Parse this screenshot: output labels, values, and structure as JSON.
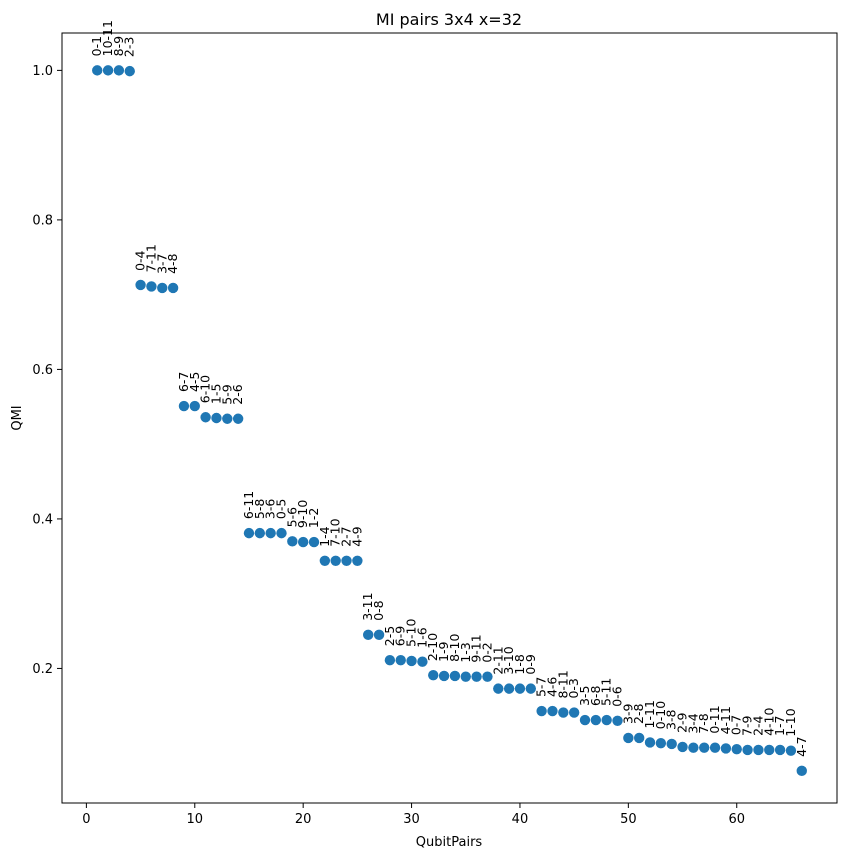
{
  "chart_data": {
    "type": "scatter",
    "title": "MI pairs 3x4 x=32",
    "xlabel": "QubitPairs",
    "ylabel": "QMI",
    "xlim": [
      -2.25,
      69.25
    ],
    "ylim": [
      0.02,
      1.05
    ],
    "xticks": [
      0,
      10,
      20,
      30,
      40,
      50,
      60
    ],
    "yticks": [
      0.2,
      0.4,
      0.6,
      0.8,
      1.0
    ],
    "ytick_labels": [
      "0.2",
      "0.4",
      "0.6",
      "0.8",
      "1.0"
    ],
    "marker_color": "#1f77b4",
    "grid": false,
    "points": [
      {
        "x": 1,
        "y": 1.0,
        "label": "0-1"
      },
      {
        "x": 2,
        "y": 1.0,
        "label": "10-11"
      },
      {
        "x": 3,
        "y": 1.0,
        "label": "8-9"
      },
      {
        "x": 4,
        "y": 0.999,
        "label": "2-3"
      },
      {
        "x": 5,
        "y": 0.713,
        "label": "0-4"
      },
      {
        "x": 6,
        "y": 0.711,
        "label": "7-11"
      },
      {
        "x": 7,
        "y": 0.709,
        "label": "3-7"
      },
      {
        "x": 8,
        "y": 0.709,
        "label": "4-8"
      },
      {
        "x": 9,
        "y": 0.551,
        "label": "6-7"
      },
      {
        "x": 10,
        "y": 0.551,
        "label": "4-5"
      },
      {
        "x": 11,
        "y": 0.536,
        "label": "6-10"
      },
      {
        "x": 12,
        "y": 0.535,
        "label": "1-5"
      },
      {
        "x": 13,
        "y": 0.534,
        "label": "5-9"
      },
      {
        "x": 14,
        "y": 0.534,
        "label": "2-6"
      },
      {
        "x": 15,
        "y": 0.381,
        "label": "6-11"
      },
      {
        "x": 16,
        "y": 0.381,
        "label": "5-8"
      },
      {
        "x": 17,
        "y": 0.381,
        "label": "3-6"
      },
      {
        "x": 18,
        "y": 0.381,
        "label": "0-5"
      },
      {
        "x": 19,
        "y": 0.37,
        "label": "5-6"
      },
      {
        "x": 20,
        "y": 0.369,
        "label": "9-10"
      },
      {
        "x": 21,
        "y": 0.369,
        "label": "1-2"
      },
      {
        "x": 22,
        "y": 0.344,
        "label": "1-4"
      },
      {
        "x": 23,
        "y": 0.344,
        "label": "7-10"
      },
      {
        "x": 24,
        "y": 0.344,
        "label": "2-7"
      },
      {
        "x": 25,
        "y": 0.344,
        "label": "4-9"
      },
      {
        "x": 26,
        "y": 0.245,
        "label": "3-11"
      },
      {
        "x": 27,
        "y": 0.245,
        "label": "0-8"
      },
      {
        "x": 28,
        "y": 0.211,
        "label": "2-5"
      },
      {
        "x": 29,
        "y": 0.211,
        "label": "6-9"
      },
      {
        "x": 30,
        "y": 0.21,
        "label": "5-10"
      },
      {
        "x": 31,
        "y": 0.209,
        "label": "1-6"
      },
      {
        "x": 32,
        "y": 0.191,
        "label": "2-10"
      },
      {
        "x": 33,
        "y": 0.19,
        "label": "1-9"
      },
      {
        "x": 34,
        "y": 0.19,
        "label": "8-10"
      },
      {
        "x": 35,
        "y": 0.189,
        "label": "1-3"
      },
      {
        "x": 36,
        "y": 0.189,
        "label": "9-11"
      },
      {
        "x": 37,
        "y": 0.189,
        "label": "0-2"
      },
      {
        "x": 38,
        "y": 0.173,
        "label": "2-11"
      },
      {
        "x": 39,
        "y": 0.173,
        "label": "3-10"
      },
      {
        "x": 40,
        "y": 0.173,
        "label": "1-8"
      },
      {
        "x": 41,
        "y": 0.173,
        "label": "0-9"
      },
      {
        "x": 42,
        "y": 0.143,
        "label": "5-7"
      },
      {
        "x": 43,
        "y": 0.143,
        "label": "4-6"
      },
      {
        "x": 44,
        "y": 0.141,
        "label": "8-11"
      },
      {
        "x": 45,
        "y": 0.141,
        "label": "0-3"
      },
      {
        "x": 46,
        "y": 0.131,
        "label": "3-5"
      },
      {
        "x": 47,
        "y": 0.131,
        "label": "6-8"
      },
      {
        "x": 48,
        "y": 0.131,
        "label": "5-11"
      },
      {
        "x": 49,
        "y": 0.13,
        "label": "0-6"
      },
      {
        "x": 50,
        "y": 0.107,
        "label": "3-9"
      },
      {
        "x": 51,
        "y": 0.107,
        "label": "2-8"
      },
      {
        "x": 52,
        "y": 0.101,
        "label": "1-11"
      },
      {
        "x": 53,
        "y": 0.1,
        "label": "0-10"
      },
      {
        "x": 54,
        "y": 0.099,
        "label": "3-8"
      },
      {
        "x": 55,
        "y": 0.095,
        "label": "2-9"
      },
      {
        "x": 56,
        "y": 0.094,
        "label": "3-4"
      },
      {
        "x": 57,
        "y": 0.094,
        "label": "7-8"
      },
      {
        "x": 58,
        "y": 0.094,
        "label": "0-11"
      },
      {
        "x": 59,
        "y": 0.093,
        "label": "4-11"
      },
      {
        "x": 60,
        "y": 0.092,
        "label": "0-7"
      },
      {
        "x": 61,
        "y": 0.091,
        "label": "7-9"
      },
      {
        "x": 62,
        "y": 0.091,
        "label": "2-4"
      },
      {
        "x": 63,
        "y": 0.091,
        "label": "4-10"
      },
      {
        "x": 64,
        "y": 0.091,
        "label": "1-7"
      },
      {
        "x": 65,
        "y": 0.09,
        "label": "1-10"
      },
      {
        "x": 66,
        "y": 0.063,
        "label": "4-7"
      }
    ]
  }
}
